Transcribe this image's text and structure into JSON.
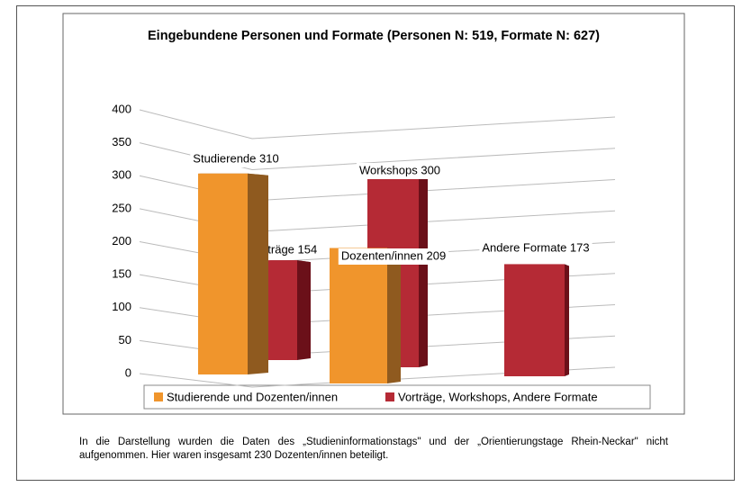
{
  "chart_data": {
    "type": "bar3d",
    "title": "Eingebundene Personen und Formate (Personen N: 519, Formate N: 627)",
    "ylim": [
      0,
      400
    ],
    "yticks": [
      0,
      50,
      100,
      150,
      200,
      250,
      300,
      350,
      400
    ],
    "grid": true,
    "legend": "bottom",
    "series": [
      {
        "name": "Studierende und Dozenten/innen",
        "color": "#f0952c",
        "side_color": "#8f5a1f",
        "values": [
          310,
          209,
          null
        ],
        "value_labels": [
          "Studierende 310",
          "Dozenten/innen 209",
          null
        ]
      },
      {
        "name": "Vorträge, Workshops, Andere Formate",
        "color": "#b52a35",
        "side_color": "#6b1019",
        "values": [
          154,
          300,
          173
        ],
        "value_labels": [
          "Vorträge 154",
          "Workshops 300",
          "Andere Formate 173"
        ]
      }
    ]
  },
  "note": "In die Darstellung wurden die Daten des „Studieninformationstags\" und der „Orientierungstage Rhein-Neckar\" nicht aufgenommen. Hier waren insgesamt 230 Dozenten/innen beteiligt."
}
